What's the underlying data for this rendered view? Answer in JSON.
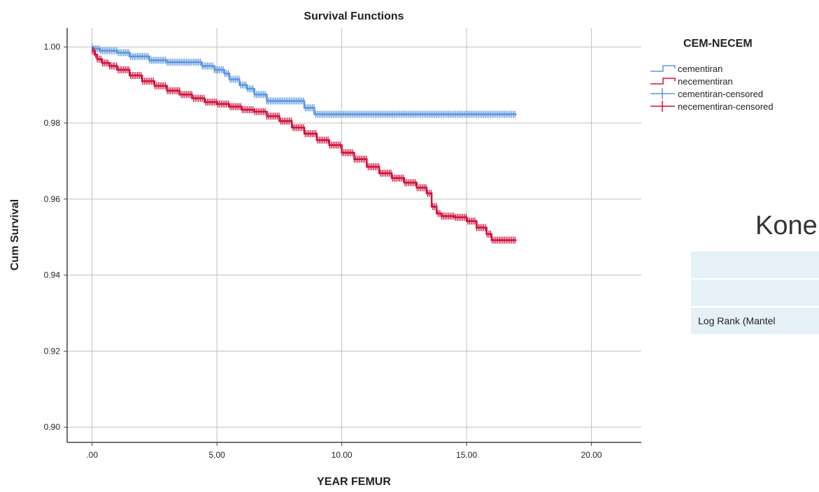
{
  "colors": {
    "cementiran": "#5b95e0",
    "necementiran": "#d0103a",
    "grid": "#c0c0c0",
    "axis": "#444444"
  },
  "chart_data": {
    "type": "line",
    "title": "Survival Functions",
    "xlabel": "YEAR FEMUR",
    "ylabel": "Cum Survival",
    "xlim": [
      -1,
      22
    ],
    "ylim": [
      0.896,
      1.005
    ],
    "x_ticks": [
      0,
      5,
      10,
      15,
      20
    ],
    "x_tick_labels": [
      ".00",
      "5.00",
      "10.00",
      "15.00",
      "20.00"
    ],
    "y_ticks": [
      0.9,
      0.92,
      0.94,
      0.96,
      0.98,
      1.0
    ],
    "y_tick_labels": [
      "0.90",
      "0.92",
      "0.94",
      "0.96",
      "0.98",
      "1.00"
    ],
    "grid": true,
    "legend_title": "CEM-NECEM",
    "legend_position": "top-right",
    "legend": [
      {
        "label": "cementiran",
        "series": "cementiran",
        "kind": "step"
      },
      {
        "label": "necementiran",
        "series": "necementiran",
        "kind": "step"
      },
      {
        "label": "cementiran-censored",
        "series": "cementiran",
        "kind": "censored"
      },
      {
        "label": "necementiran-censored",
        "series": "necementiran",
        "kind": "censored"
      }
    ],
    "series": [
      {
        "name": "cementiran",
        "x": [
          0,
          0.05,
          0.3,
          1.0,
          1.5,
          2.3,
          3.0,
          4.4,
          4.9,
          5.3,
          5.5,
          5.9,
          6.2,
          6.5,
          7.0,
          8.5,
          8.9,
          17.0
        ],
        "y": [
          1.0,
          0.9995,
          0.999,
          0.9985,
          0.9975,
          0.9965,
          0.996,
          0.995,
          0.994,
          0.993,
          0.9915,
          0.99,
          0.989,
          0.9875,
          0.9858,
          0.984,
          0.9823,
          0.9823
        ],
        "censored_range": [
          0,
          17.0
        ],
        "censored_step": 0.07
      },
      {
        "name": "necementiran",
        "x": [
          0,
          0.1,
          0.2,
          0.4,
          0.7,
          1.0,
          1.5,
          2.0,
          2.5,
          3.0,
          3.5,
          4.0,
          4.5,
          5.0,
          5.5,
          6.0,
          6.5,
          7.0,
          7.5,
          8.0,
          8.5,
          9.0,
          9.5,
          10.0,
          10.5,
          11.0,
          11.5,
          12.0,
          12.5,
          13.0,
          13.4,
          13.6,
          13.8,
          14.0,
          14.5,
          15.0,
          15.4,
          15.8,
          16.0,
          17.0
        ],
        "y": [
          0.999,
          0.998,
          0.9968,
          0.9958,
          0.995,
          0.994,
          0.9925,
          0.991,
          0.9898,
          0.9885,
          0.9875,
          0.9865,
          0.9855,
          0.985,
          0.9843,
          0.9835,
          0.983,
          0.9818,
          0.9805,
          0.9788,
          0.9772,
          0.9755,
          0.9742,
          0.9722,
          0.9705,
          0.9685,
          0.9668,
          0.9655,
          0.9643,
          0.963,
          0.9615,
          0.958,
          0.9562,
          0.9555,
          0.9552,
          0.9542,
          0.9525,
          0.9508,
          0.9492,
          0.9492
        ],
        "censored_range": [
          0,
          17.0
        ],
        "censored_step": 0.07
      }
    ]
  },
  "side_panel": {
    "heading": "Kone",
    "rows": [
      "",
      "",
      "Log Rank (Mantel"
    ]
  }
}
